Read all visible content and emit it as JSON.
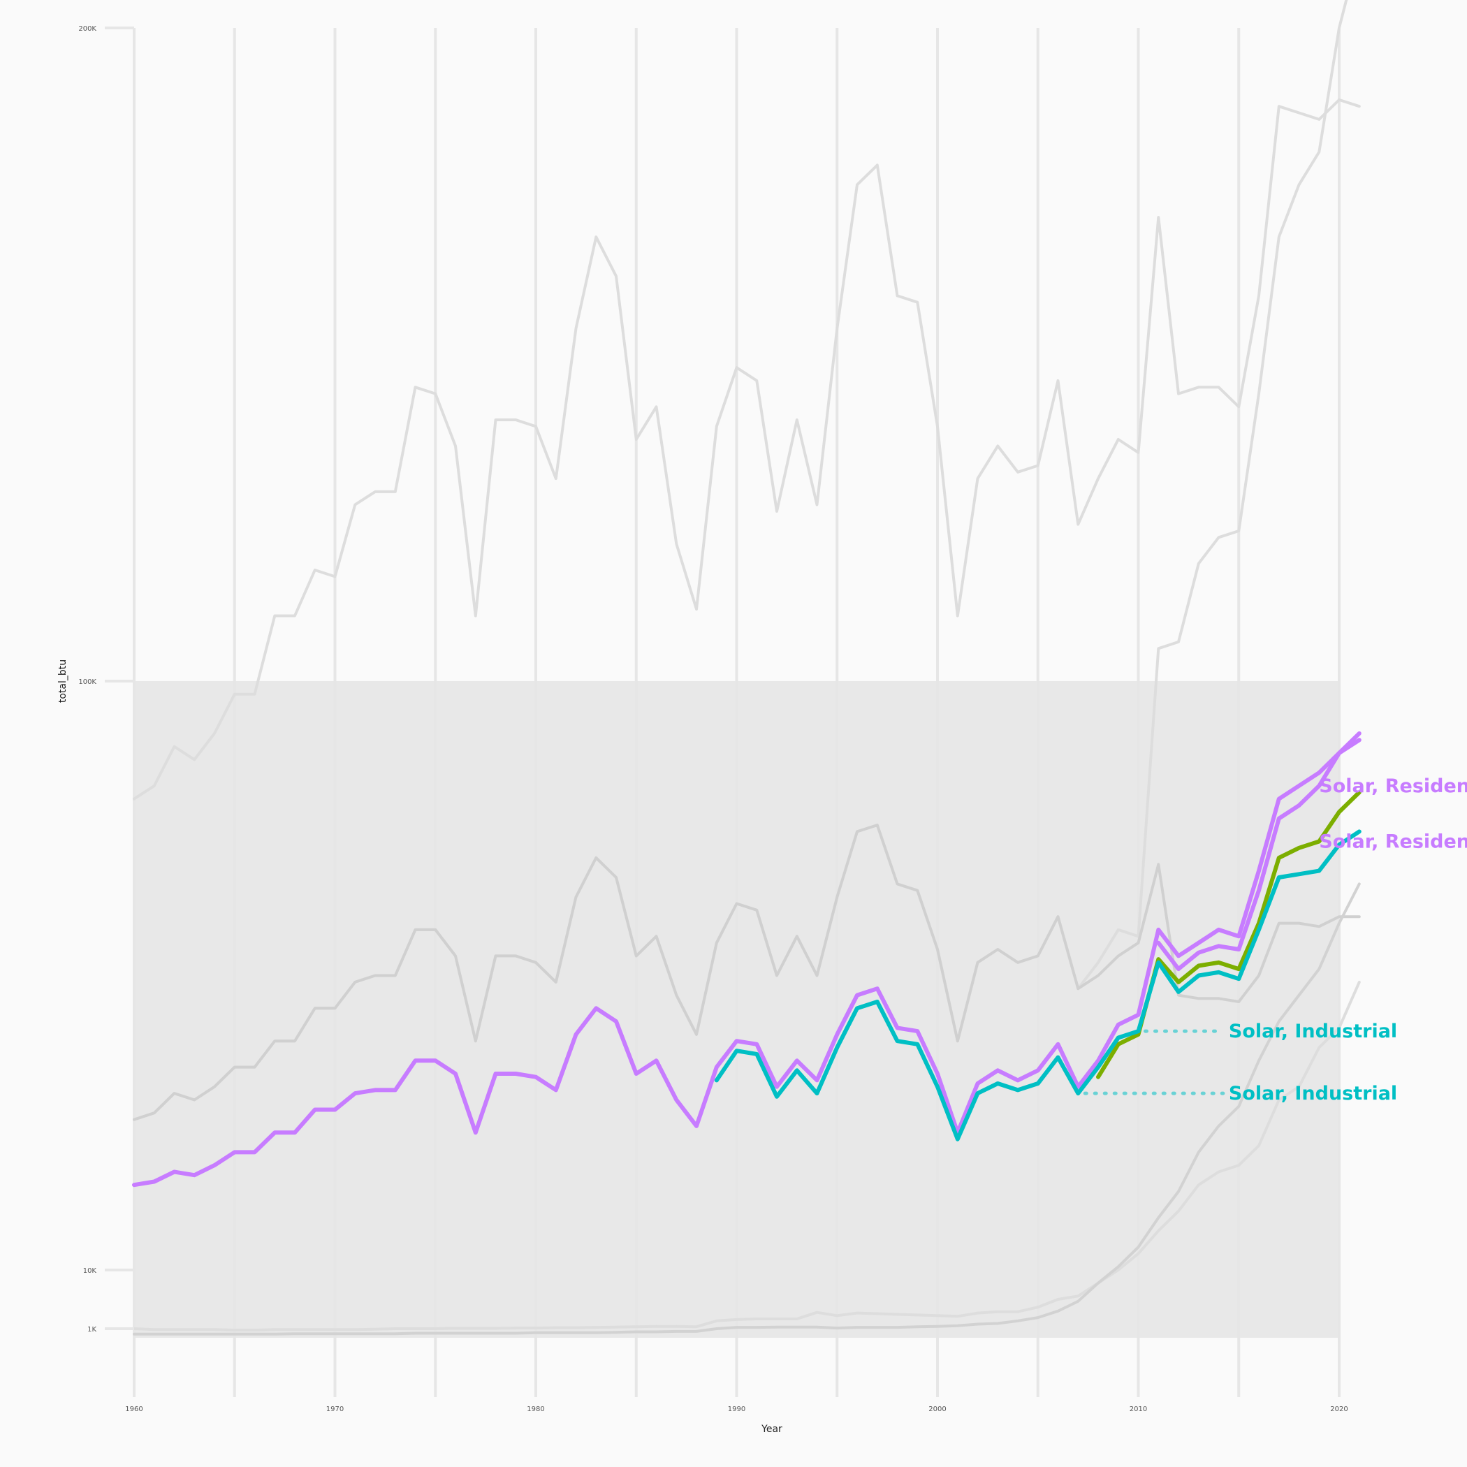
{
  "chart_data": {
    "type": "line",
    "title": "",
    "xlabel": "Year",
    "ylabel": "total_btu",
    "xlim": [
      1960,
      2021
    ],
    "x_ticks": [
      1960,
      1970,
      1980,
      1990,
      2000,
      2010,
      2020
    ],
    "y_ticks": [
      {
        "value": 1000,
        "label": "1K"
      },
      {
        "value": 10000,
        "label": "10K"
      },
      {
        "value": 100000,
        "label": "100K"
      },
      {
        "value": 200000,
        "label": "200K"
      }
    ],
    "y_scale": "piecewise",
    "grid": "vertical",
    "background_series": [
      {
        "x": [
          1960,
          1961,
          1962,
          1963,
          1964,
          1965,
          1966,
          1967,
          1968,
          1969,
          1970,
          1971,
          1972,
          1973,
          1974,
          1975,
          1976,
          1977,
          1978,
          1979,
          1980,
          1981,
          1982,
          1983,
          1984,
          1985,
          1986,
          1987,
          1988,
          1989,
          1990,
          1991,
          1992,
          1993,
          1994,
          1995,
          1996,
          1997,
          1998,
          1999,
          2000,
          2001,
          2002,
          2003,
          2004,
          2005,
          2006,
          2007,
          2008,
          2009,
          2010,
          2011,
          2012,
          2013,
          2014,
          2015,
          2016,
          2017,
          2018,
          2019,
          2020,
          2021
        ],
        "y": [
          82000,
          84000,
          90000,
          88000,
          92000,
          98000,
          98000,
          110000,
          110000,
          117000,
          116000,
          127000,
          129000,
          129000,
          145000,
          144000,
          136000,
          110000,
          140000,
          140000,
          139000,
          131000,
          154000,
          168000,
          162000,
          137000,
          142000,
          121000,
          111000,
          139000,
          148000,
          146000,
          126000,
          140000,
          127000,
          154000,
          176000,
          179000,
          159000,
          158000,
          139000,
          110000,
          131000,
          136000,
          132000,
          133000,
          146000,
          124000,
          131000,
          137000,
          135000,
          171000,
          144000,
          145000,
          145000,
          142000,
          159000,
          188000,
          187000,
          186000,
          189000,
          188000
        ],
        "color": "#dddddd"
      },
      {
        "x": [
          1960,
          1961,
          1962,
          1963,
          1964,
          1965,
          1966,
          1967,
          1968,
          1969,
          1970,
          1971,
          1972,
          1973,
          1974,
          1975,
          1976,
          1977,
          1978,
          1979,
          1980,
          1981,
          1982,
          1983,
          1984,
          1985,
          1986,
          1987,
          1988,
          1989,
          1990,
          1991,
          1992,
          1993,
          1994,
          1995,
          1996,
          1997,
          1998,
          1999,
          2000,
          2001,
          2002,
          2003,
          2004,
          2005,
          2006,
          2007,
          2008,
          2009,
          2010,
          2011,
          2012,
          2013,
          2014,
          2015,
          2016,
          2017,
          2018,
          2019,
          2020,
          2021
        ],
        "y": [
          33000,
          34000,
          37000,
          36000,
          38000,
          41000,
          41000,
          45000,
          45000,
          50000,
          50000,
          54000,
          55000,
          55000,
          62000,
          62000,
          58000,
          45000,
          58000,
          58000,
          57000,
          54000,
          67000,
          73000,
          70000,
          58000,
          61000,
          52000,
          46000,
          60000,
          66000,
          65000,
          55000,
          61000,
          55000,
          67000,
          77000,
          78000,
          69000,
          68000,
          59000,
          45000,
          57000,
          59000,
          57000,
          58000,
          64000,
          53000,
          57000,
          62000,
          61000,
          105000,
          106000,
          118000,
          122000,
          123000,
          144000,
          168000,
          176000,
          181000,
          200000,
          212000
        ],
        "color": "#dddddd"
      },
      {
        "x": [
          1960,
          1961,
          1962,
          1963,
          1964,
          1965,
          1966,
          1967,
          1968,
          1969,
          1970,
          1971,
          1972,
          1973,
          1974,
          1975,
          1976,
          1977,
          1978,
          1979,
          1980,
          1981,
          1982,
          1983,
          1984,
          1985,
          1986,
          1987,
          1988,
          1989,
          1990,
          1991,
          1992,
          1993,
          1994,
          1995,
          1996,
          1997,
          1998,
          1999,
          2000,
          2001,
          2002,
          2003,
          2004,
          2005,
          2006,
          2007,
          2008,
          2009,
          2010,
          2011,
          2012,
          2013,
          2014,
          2015,
          2016,
          2017,
          2018,
          2019,
          2020,
          2021
        ],
        "y": [
          33000,
          34000,
          37000,
          36000,
          38000,
          41000,
          41000,
          45000,
          45000,
          50000,
          50000,
          54000,
          55000,
          55000,
          62000,
          62000,
          58000,
          45000,
          58000,
          58000,
          57000,
          54000,
          67000,
          73000,
          70000,
          58000,
          61000,
          52000,
          46000,
          60000,
          66000,
          65000,
          55000,
          61000,
          55000,
          67000,
          77000,
          78000,
          69000,
          68000,
          59000,
          45000,
          57000,
          59000,
          57000,
          58000,
          64000,
          53000,
          55000,
          58000,
          60000,
          72000,
          52000,
          51500,
          51500,
          51000,
          55000,
          63000,
          63000,
          62500,
          64000,
          64000
        ],
        "color": "#d0d0d0"
      },
      {
        "x": [
          1960,
          1961,
          1962,
          1963,
          1964,
          1965,
          1966,
          1967,
          1968,
          1969,
          1970,
          1971,
          1972,
          1973,
          1974,
          1975,
          1976,
          1977,
          1978,
          1979,
          1980,
          1981,
          1982,
          1983,
          1984,
          1985,
          1986,
          1987,
          1988,
          1989,
          1990,
          1991,
          1992,
          1993,
          1994,
          1995,
          1996,
          1997,
          1998,
          1999,
          2000,
          2001,
          2002,
          2003,
          2004,
          2005,
          2006,
          2007,
          2008,
          2009,
          2010,
          2011,
          2012,
          2013,
          2014,
          2015,
          2016,
          2017,
          2018,
          2019,
          2020,
          2021
        ],
        "y": [
          1000,
          900,
          900,
          900,
          900,
          850,
          850,
          900,
          900,
          900,
          900,
          900,
          950,
          1000,
          1000,
          1000,
          1050,
          1050,
          1050,
          1100,
          1100,
          1150,
          1150,
          1200,
          1250,
          1300,
          1350,
          1350,
          1300,
          2200,
          2400,
          2500,
          2500,
          2500,
          3500,
          3000,
          3400,
          3300,
          3200,
          3100,
          3000,
          2900,
          3400,
          3600,
          3600,
          4300,
          5500,
          6000,
          8000,
          10000,
          12500,
          16000,
          19000,
          23000,
          25000,
          26000,
          29000,
          36000,
          38000,
          44000,
          47000,
          54000
        ],
        "color": "#dddddd"
      },
      {
        "x": [
          1960,
          1961,
          1962,
          1963,
          1964,
          1965,
          1966,
          1967,
          1968,
          1969,
          1970,
          1971,
          1972,
          1973,
          1974,
          1975,
          1976,
          1977,
          1978,
          1979,
          1980,
          1981,
          1982,
          1983,
          1984,
          1985,
          1986,
          1987,
          1988,
          1989,
          1990,
          1991,
          1992,
          1993,
          1994,
          1995,
          1996,
          1997,
          1998,
          1999,
          2000,
          2001,
          2002,
          2003,
          2004,
          2005,
          2006,
          2007,
          2008,
          2009,
          2010,
          2011,
          2012,
          2013,
          2014,
          2015,
          2016,
          2017,
          2018,
          2019,
          2020,
          2021
        ],
        "y": [
          400,
          400,
          400,
          400,
          400,
          400,
          400,
          400,
          450,
          450,
          450,
          450,
          450,
          450,
          500,
          500,
          500,
          500,
          500,
          500,
          550,
          550,
          550,
          550,
          600,
          650,
          650,
          700,
          700,
          1000,
          1200,
          1200,
          1250,
          1250,
          1250,
          1100,
          1200,
          1200,
          1200,
          1300,
          1350,
          1450,
          1700,
          1800,
          2200,
          2700,
          3700,
          5200,
          8000,
          10500,
          13500,
          18000,
          22000,
          28000,
          32000,
          35000,
          42000,
          48000,
          52000,
          56000,
          63000,
          69000
        ],
        "color": "#d2d2d2"
      },
      {
        "x": [
          1960,
          1961,
          1962,
          1963,
          1964,
          1965,
          1966,
          1967,
          1968,
          1969,
          1970,
          1971,
          1972,
          1973,
          1974,
          1975,
          1976,
          1977,
          1978,
          1979,
          1980,
          1981,
          1982,
          1983,
          1984,
          1985,
          1986,
          1987,
          1988,
          1989,
          1990,
          1991,
          1992,
          1993,
          1994,
          1995,
          1996,
          1997,
          1998,
          1999,
          2000,
          2001,
          2002,
          2003,
          2004,
          2005,
          2006,
          2007,
          2008,
          2009,
          2010,
          2011,
          2012,
          2013,
          2014,
          2015,
          2016,
          2017,
          2018,
          2019,
          2020,
          2021
        ],
        "y": [
          null,
          null,
          null,
          null,
          null,
          null,
          null,
          null,
          null,
          null,
          null,
          null,
          null,
          null,
          null,
          null,
          null,
          null,
          null,
          null,
          null,
          null,
          null,
          null,
          null,
          null,
          null,
          null,
          null,
          null,
          null,
          null,
          null,
          null,
          null,
          null,
          null,
          null,
          null,
          null,
          null,
          null,
          null,
          null,
          null,
          null,
          null,
          null,
          null,
          null,
          null,
          null,
          null,
          null,
          null,
          null,
          null,
          null,
          null,
          null,
          null,
          null
        ],
        "color": "#dddddd"
      }
    ],
    "series": [
      {
        "name": "Solar, Residential",
        "color": "#c77cff",
        "x": [
          1960,
          1961,
          1962,
          1963,
          1964,
          1965,
          1966,
          1967,
          1968,
          1969,
          1970,
          1971,
          1972,
          1973,
          1974,
          1975,
          1976,
          1977,
          1978,
          1979,
          1980,
          1981,
          1982,
          1983,
          1984,
          1985,
          1986,
          1987,
          1988,
          1989,
          1990,
          1991,
          1992,
          1993,
          1994,
          1995,
          1996,
          1997,
          1998,
          1999,
          2000,
          2001,
          2002,
          2003,
          2004,
          2005,
          2006,
          2007,
          2008,
          2009,
          2010,
          2011,
          2012,
          2013,
          2014,
          2015,
          2016,
          2017,
          2018,
          2019,
          2020,
          2021
        ],
        "y": [
          23000,
          23500,
          25000,
          24500,
          26000,
          28000,
          28000,
          31000,
          31000,
          34500,
          34500,
          37000,
          37500,
          37500,
          42000,
          42000,
          40000,
          31000,
          40000,
          40000,
          39500,
          37500,
          46000,
          50000,
          48000,
          40000,
          42000,
          36000,
          32000,
          41000,
          45000,
          44500,
          38000,
          42000,
          39000,
          46000,
          52000,
          53000,
          47000,
          46500,
          40000,
          31000,
          38500,
          40500,
          39000,
          40500,
          44500,
          38000,
          42000,
          47500,
          49000,
          62000,
          58000,
          60000,
          62000,
          61000,
          71000,
          82000,
          84000,
          86000,
          89000,
          92000
        ],
        "width": 6
      },
      {
        "name": "Solar, Residential",
        "color": "#c77cff",
        "x": [
          2011,
          2012,
          2013,
          2014,
          2015,
          2016,
          2017,
          2018,
          2019,
          2020,
          2021
        ],
        "y": [
          60000,
          56000,
          58500,
          59500,
          59000,
          68000,
          79000,
          81000,
          84000,
          89000,
          91000
        ],
        "width": 6
      },
      {
        "name": "",
        "color": "#7cae00",
        "x": [
          2008,
          2009,
          2010,
          2011,
          2012,
          2013,
          2014,
          2015,
          2016,
          2017,
          2018,
          2019,
          2020,
          2021
        ],
        "y": [
          39500,
          44500,
          46000,
          57500,
          54000,
          56500,
          57000,
          56000,
          63000,
          73000,
          74500,
          75500,
          80000,
          83000
        ],
        "width": 6
      },
      {
        "name": "Solar, Industrial",
        "color": "#00bfc4",
        "x": [
          1989,
          1990,
          1991,
          1992,
          1993,
          1994,
          1995,
          1996,
          1997,
          1998,
          1999,
          2000,
          2001,
          2002,
          2003,
          2004,
          2005,
          2006,
          2007,
          2008,
          2009,
          2010,
          2011,
          2012,
          2013,
          2014,
          2015,
          2016,
          2017,
          2018,
          2019,
          2020,
          2021
        ],
        "y": [
          39000,
          43500,
          43000,
          36500,
          40500,
          37000,
          44000,
          50000,
          51000,
          45000,
          44500,
          38000,
          30000,
          37000,
          38500,
          37500,
          38500,
          42500,
          37000,
          41000,
          45500,
          46500,
          57000,
          52500,
          55000,
          55500,
          54500,
          62000,
          70000,
          70500,
          71000,
          75000,
          77000
        ],
        "width": 6
      }
    ],
    "labels": [
      {
        "text": "Solar, Residential",
        "x": 2019,
        "y": 84000,
        "color": "#c77cff"
      },
      {
        "text": "Solar, Residential",
        "x": 2019,
        "y": 75500,
        "color": "#c77cff"
      },
      {
        "text": "Solar, Industrial",
        "x": 2014.5,
        "y": 46500,
        "color": "#00bfc4",
        "leader_from_x": 2010
      },
      {
        "text": "Solar, Industrial",
        "x": 2014.5,
        "y": 37000,
        "color": "#00bfc4",
        "leader_from_x": 2007
      }
    ]
  }
}
